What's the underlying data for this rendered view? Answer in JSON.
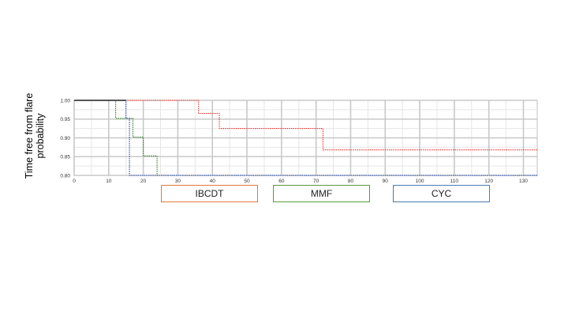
{
  "chart_data": {
    "type": "line",
    "step": true,
    "ylabel": "Time free from flare probability",
    "ylabel_lines": [
      "Time free from flare",
      "probability"
    ],
    "xlabel": "",
    "xlim": [
      0,
      134
    ],
    "ylim": [
      0.8,
      1.0
    ],
    "x_ticks": [
      "0",
      "10",
      "20",
      "30",
      "40",
      "50",
      "60",
      "70",
      "80",
      "90",
      "100",
      "110",
      "120",
      "130"
    ],
    "y_ticks": [
      "1.00",
      "0.95",
      "0.90",
      "0.85",
      "0.80"
    ],
    "grid": true,
    "legend_position": "below",
    "series": [
      {
        "name": "IBCDT",
        "color": "#e8302a",
        "legend_color": "#e07a3a",
        "points": [
          [
            0,
            1.0
          ],
          [
            36,
            1.0
          ],
          [
            36,
            0.965
          ],
          [
            42,
            0.965
          ],
          [
            42,
            0.925
          ],
          [
            72,
            0.925
          ],
          [
            72,
            0.868
          ],
          [
            134,
            0.868
          ]
        ]
      },
      {
        "name": "MMF",
        "color": "#2e7d1e",
        "legend_color": "#5a9a3a",
        "points": [
          [
            0,
            1.0
          ],
          [
            12,
            1.0
          ],
          [
            12,
            0.952
          ],
          [
            17,
            0.952
          ],
          [
            17,
            0.902
          ],
          [
            20,
            0.902
          ],
          [
            20,
            0.852
          ],
          [
            24,
            0.852
          ],
          [
            24,
            0.8
          ],
          [
            134,
            0.8
          ]
        ]
      },
      {
        "name": "CYC",
        "color": "#1f3fb0",
        "legend_color": "#4a7ab0",
        "points": [
          [
            0,
            1.0
          ],
          [
            15,
            1.0
          ],
          [
            15,
            0.952
          ],
          [
            16,
            0.952
          ],
          [
            16,
            0.902
          ],
          [
            16,
            0.8
          ],
          [
            134,
            0.8
          ]
        ]
      }
    ],
    "baseline": {
      "color": "#000000",
      "points": [
        [
          0,
          1.0
        ],
        [
          15,
          1.0
        ]
      ]
    }
  }
}
